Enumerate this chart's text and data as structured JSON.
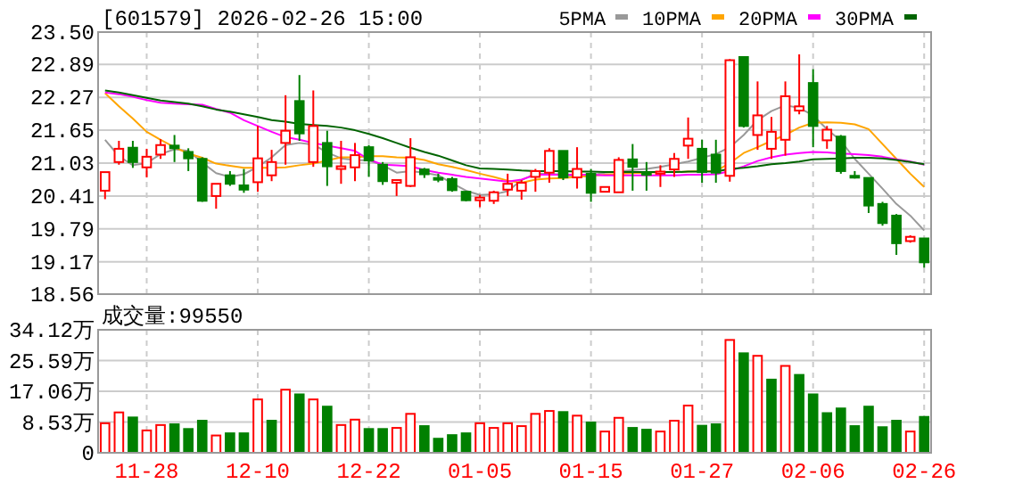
{
  "chart_data": [
    {
      "type": "candlestick",
      "title": "[601579] 2026-02-26 15:00",
      "legend": "top right",
      "grid": true,
      "tick_labels": "y",
      "colors": [
        "#ff0000",
        "#ff0000",
        "#008000",
        "#ff0000",
        "#ff0000",
        "#008000",
        "#008000",
        "#008000",
        "#ff0000",
        "#008000",
        "#008000",
        "#ff0000",
        "#ff0000",
        "#ff0000",
        "#008000",
        "#ff0000",
        "#008000",
        "#ff0000",
        "#ff0000",
        "#008000",
        "#008000",
        "#ff0000",
        "#ff0000",
        "#008000",
        "#008000",
        "#008000",
        "#008000",
        "#ff0000",
        "#ff0000",
        "#ff0000",
        "#ff0000",
        "#ff0000",
        "#ff0000",
        "#008000",
        "#ff0000",
        "#008000",
        "#ff0000",
        "#ff0000",
        "#008000",
        "#008000",
        "#ff0000",
        "#ff0000",
        "#ff0000",
        "#008000",
        "#008000",
        "#ff0000",
        "#008000",
        "#ff0000",
        "#ff0000",
        "#ff0000",
        "#ff0000",
        "#008000",
        "#ff0000",
        "#008000",
        "#008000",
        "#008000",
        "#008000",
        "#008000",
        "#ff0000",
        "#008000"
      ],
      "categories": [
        null,
        null,
        null,
        null,
        null,
        null,
        null,
        null,
        null,
        null,
        null,
        null,
        null,
        null,
        null,
        null,
        null,
        null,
        null,
        null,
        null,
        null,
        null,
        null,
        null,
        null,
        null,
        null,
        null,
        null,
        null,
        null,
        null,
        null,
        null,
        null,
        null,
        null,
        null,
        null,
        null,
        null,
        null,
        null,
        null,
        null,
        null,
        null,
        null,
        null,
        null,
        null,
        null,
        null,
        null,
        null,
        null,
        null,
        null,
        null
      ],
      "ylim": [
        18.56,
        23.5
      ],
      "yticks": [
        {
          "value": 18.56,
          "label": "18.56"
        },
        {
          "value": 19.17,
          "label": "19.17"
        },
        {
          "value": 19.79,
          "label": "19.79"
        },
        {
          "value": 20.41,
          "label": "20.41"
        },
        {
          "value": 21.03,
          "label": "21.03"
        },
        {
          "value": 21.65,
          "label": "21.65"
        },
        {
          "value": 22.27,
          "label": "22.27"
        },
        {
          "value": 22.89,
          "label": "22.89"
        },
        {
          "value": 23.5,
          "label": "23.50"
        }
      ],
      "ohlc": [
        [
          20.51,
          20.86,
          20.35,
          20.86
        ],
        [
          21.05,
          21.45,
          21.0,
          21.3
        ],
        [
          21.32,
          21.45,
          20.94,
          21.05
        ],
        [
          20.95,
          21.3,
          20.76,
          21.15
        ],
        [
          21.19,
          21.48,
          21.11,
          21.37
        ],
        [
          21.36,
          21.56,
          21.05,
          21.31
        ],
        [
          21.24,
          21.31,
          20.88,
          21.12
        ],
        [
          21.11,
          21.14,
          20.3,
          20.32
        ],
        [
          20.41,
          20.64,
          20.17,
          20.64
        ],
        [
          20.8,
          20.88,
          20.6,
          20.64
        ],
        [
          20.61,
          20.92,
          20.47,
          20.53
        ],
        [
          20.67,
          21.73,
          20.49,
          21.12
        ],
        [
          20.8,
          21.28,
          20.69,
          21.05
        ],
        [
          21.41,
          22.31,
          21.0,
          21.64
        ],
        [
          22.2,
          22.69,
          21.45,
          21.59
        ],
        [
          21.05,
          22.4,
          20.96,
          21.73
        ],
        [
          21.41,
          21.64,
          20.6,
          20.97
        ],
        [
          20.92,
          21.45,
          20.64,
          20.97
        ],
        [
          20.95,
          21.41,
          20.69,
          21.18
        ],
        [
          21.33,
          21.37,
          20.77,
          21.08
        ],
        [
          21.0,
          21.05,
          20.62,
          20.69
        ],
        [
          20.66,
          20.71,
          20.41,
          20.71
        ],
        [
          20.6,
          21.5,
          20.58,
          21.14
        ],
        [
          20.91,
          20.94,
          20.75,
          20.82
        ],
        [
          20.75,
          20.83,
          20.67,
          20.72
        ],
        [
          20.73,
          20.77,
          20.49,
          20.52
        ],
        [
          20.49,
          20.51,
          20.31,
          20.33
        ],
        [
          20.33,
          20.43,
          20.2,
          20.38
        ],
        [
          20.32,
          20.51,
          20.26,
          20.48
        ],
        [
          20.53,
          20.83,
          20.41,
          20.64
        ],
        [
          20.51,
          20.71,
          20.34,
          20.66
        ],
        [
          20.77,
          20.92,
          20.49,
          20.88
        ],
        [
          20.85,
          21.31,
          20.66,
          21.26
        ],
        [
          21.26,
          21.26,
          20.71,
          20.76
        ],
        [
          20.76,
          21.33,
          20.55,
          20.92
        ],
        [
          20.83,
          20.92,
          20.3,
          20.47
        ],
        [
          20.49,
          20.58,
          20.49,
          20.58
        ],
        [
          20.48,
          21.14,
          20.48,
          21.09
        ],
        [
          21.1,
          21.39,
          20.51,
          20.96
        ],
        [
          20.85,
          21.05,
          20.51,
          20.81
        ],
        [
          20.83,
          20.99,
          20.58,
          20.87
        ],
        [
          20.91,
          21.22,
          20.77,
          21.11
        ],
        [
          21.36,
          21.89,
          21.11,
          21.49
        ],
        [
          21.3,
          21.47,
          20.66,
          20.86
        ],
        [
          21.19,
          21.47,
          20.66,
          20.85
        ],
        [
          20.79,
          22.99,
          20.68,
          22.97
        ],
        [
          23.03,
          23.03,
          21.7,
          21.73
        ],
        [
          21.56,
          22.57,
          21.28,
          21.93
        ],
        [
          21.3,
          21.9,
          21.11,
          21.62
        ],
        [
          21.47,
          22.57,
          21.17,
          22.29
        ],
        [
          22.02,
          23.08,
          21.95,
          22.1
        ],
        [
          22.54,
          22.8,
          21.33,
          21.73
        ],
        [
          21.46,
          21.73,
          21.3,
          21.66
        ],
        [
          21.53,
          21.56,
          20.83,
          20.88
        ],
        [
          20.79,
          20.88,
          20.74,
          20.77
        ],
        [
          20.75,
          20.75,
          20.09,
          20.23
        ],
        [
          20.26,
          20.3,
          19.85,
          19.9
        ],
        [
          20.04,
          20.07,
          19.3,
          19.52
        ],
        [
          19.56,
          19.67,
          19.53,
          19.64
        ],
        [
          19.61,
          19.61,
          19.06,
          19.16
        ]
      ],
      "series": [
        {
          "name": "5PMA",
          "type": "line",
          "color": "#999999",
          "values": [
            21.47,
            21.16,
            20.99,
            21.03,
            21.2,
            21.29,
            21.26,
            21.04,
            20.84,
            20.77,
            20.82,
            20.96,
            21.14,
            21.37,
            21.41,
            21.38,
            21.23,
            21.12,
            21.09,
            21.08,
            20.99,
            20.85,
            20.88,
            20.85,
            20.8,
            20.65,
            20.51,
            20.43,
            20.44,
            20.5,
            20.71,
            20.83,
            20.83,
            20.81,
            20.77,
            20.8,
            20.85,
            20.87,
            20.9,
            20.92,
            20.96,
            21.01,
            21.06,
            21.13,
            21.2,
            21.33,
            21.56,
            21.84,
            22.01,
            22.12,
            22.07,
            21.93,
            21.67,
            21.45,
            21.11,
            20.83,
            20.55,
            20.26,
            20.04,
            19.76
          ]
        },
        {
          "name": "10PMA",
          "type": "line",
          "color": "#ffa500",
          "values": [
            22.35,
            22.1,
            21.87,
            21.62,
            21.47,
            21.33,
            21.21,
            21.13,
            21.02,
            20.98,
            20.94,
            20.94,
            20.94,
            20.95,
            20.99,
            21.02,
            21.08,
            21.14,
            21.14,
            21.16,
            21.16,
            21.14,
            21.13,
            21.09,
            21.01,
            20.96,
            20.9,
            20.83,
            20.77,
            20.7,
            20.66,
            20.72,
            20.74,
            20.75,
            20.77,
            20.79,
            20.81,
            20.83,
            20.84,
            20.85,
            20.86,
            20.86,
            20.87,
            20.88,
            20.88,
            21.03,
            21.22,
            21.33,
            21.45,
            21.56,
            21.7,
            21.79,
            21.8,
            21.79,
            21.76,
            21.67,
            21.39,
            21.11,
            20.83,
            20.58
          ]
        },
        {
          "name": "20PMA",
          "type": "line",
          "color": "#ff00ff",
          "values": [
            22.36,
            22.33,
            22.28,
            22.22,
            22.17,
            22.15,
            22.14,
            22.13,
            22.05,
            21.98,
            21.84,
            21.73,
            21.62,
            21.52,
            21.47,
            21.41,
            21.36,
            21.31,
            21.26,
            21.1,
            21.0,
            20.99,
            20.97,
            20.9,
            20.85,
            20.81,
            20.77,
            20.74,
            20.71,
            20.68,
            20.72,
            20.81,
            20.81,
            20.81,
            20.81,
            20.81,
            20.8,
            20.8,
            20.8,
            20.8,
            20.8,
            20.8,
            20.81,
            20.81,
            20.82,
            20.88,
            20.97,
            21.07,
            21.14,
            21.19,
            21.22,
            21.24,
            21.23,
            21.21,
            21.2,
            21.18,
            21.15,
            21.1,
            21.06,
            21.0
          ]
        },
        {
          "name": "30PMA",
          "type": "line",
          "color": "#006400",
          "values": [
            22.4,
            22.36,
            22.31,
            22.26,
            22.21,
            22.18,
            22.15,
            22.1,
            22.04,
            22.0,
            21.95,
            21.9,
            21.84,
            21.81,
            21.77,
            21.75,
            21.73,
            21.7,
            21.65,
            21.58,
            21.5,
            21.41,
            21.32,
            21.24,
            21.17,
            21.08,
            20.99,
            20.93,
            20.92,
            20.91,
            20.89,
            20.88,
            20.88,
            20.88,
            20.87,
            20.87,
            20.86,
            20.86,
            20.86,
            20.86,
            20.86,
            20.86,
            20.87,
            20.87,
            20.87,
            20.92,
            20.94,
            20.97,
            21.01,
            21.03,
            21.06,
            21.1,
            21.11,
            21.12,
            21.13,
            21.13,
            21.12,
            21.09,
            21.05,
            21.01
          ]
        }
      ]
    },
    {
      "type": "bar",
      "title": "成交量:99550",
      "grid": true,
      "categories": [
        null,
        null,
        null,
        "11-28",
        null,
        null,
        null,
        null,
        null,
        null,
        null,
        "12-10",
        null,
        null,
        null,
        null,
        null,
        null,
        null,
        "12-22",
        null,
        null,
        null,
        null,
        null,
        null,
        null,
        "01-05",
        null,
        null,
        null,
        null,
        null,
        null,
        null,
        "01-15",
        null,
        null,
        null,
        null,
        null,
        null,
        null,
        "01-27",
        null,
        null,
        null,
        null,
        null,
        null,
        null,
        "02-06",
        null,
        null,
        null,
        null,
        null,
        null,
        null,
        "02-26"
      ],
      "ylim": [
        0,
        34.12
      ],
      "yticks": [
        0,
        {
          "value": 8.53,
          "label": "8.53万"
        },
        {
          "value": 17.06,
          "label": "17.06万"
        },
        {
          "value": 25.59,
          "label": "25.59万"
        },
        {
          "value": 34.12,
          "label": "34.12万"
        }
      ],
      "values": [
        8.2,
        11.2,
        9.8,
        6.2,
        7.7,
        7.9,
        6.6,
        8.9,
        4.8,
        5.4,
        5.4,
        14.8,
        8.9,
        17.5,
        16.2,
        14.8,
        12.8,
        7.7,
        9.2,
        6.6,
        6.6,
        6.9,
        10.8,
        7.4,
        3.9,
        4.9,
        5.4,
        8.2,
        6.9,
        8.2,
        7.4,
        10.8,
        11.6,
        11.3,
        10.3,
        8.4,
        5.9,
        9.7,
        6.9,
        6.4,
        5.9,
        8.9,
        13.1,
        7.5,
        7.9,
        31.3,
        27.6,
        26.9,
        20.3,
        24.1,
        21.6,
        16.2,
        11.0,
        12.3,
        7.4,
        12.8,
        7.1,
        8.9,
        5.9,
        9.955
      ],
      "colors": [
        "#ff0000",
        "#ff0000",
        "#008000",
        "#ff0000",
        "#ff0000",
        "#008000",
        "#008000",
        "#008000",
        "#ff0000",
        "#008000",
        "#008000",
        "#ff0000",
        "#008000",
        "#ff0000",
        "#008000",
        "#ff0000",
        "#008000",
        "#ff0000",
        "#ff0000",
        "#008000",
        "#008000",
        "#ff0000",
        "#ff0000",
        "#008000",
        "#008000",
        "#008000",
        "#008000",
        "#ff0000",
        "#ff0000",
        "#ff0000",
        "#ff0000",
        "#ff0000",
        "#ff0000",
        "#008000",
        "#ff0000",
        "#008000",
        "#ff0000",
        "#ff0000",
        "#008000",
        "#008000",
        "#ff0000",
        "#ff0000",
        "#ff0000",
        "#008000",
        "#008000",
        "#ff0000",
        "#008000",
        "#ff0000",
        "#008000",
        "#ff0000",
        "#008000",
        "#008000",
        "#008000",
        "#008000",
        "#008000",
        "#008000",
        "#008000",
        "#008000",
        "#ff0000",
        "#008000"
      ]
    }
  ]
}
